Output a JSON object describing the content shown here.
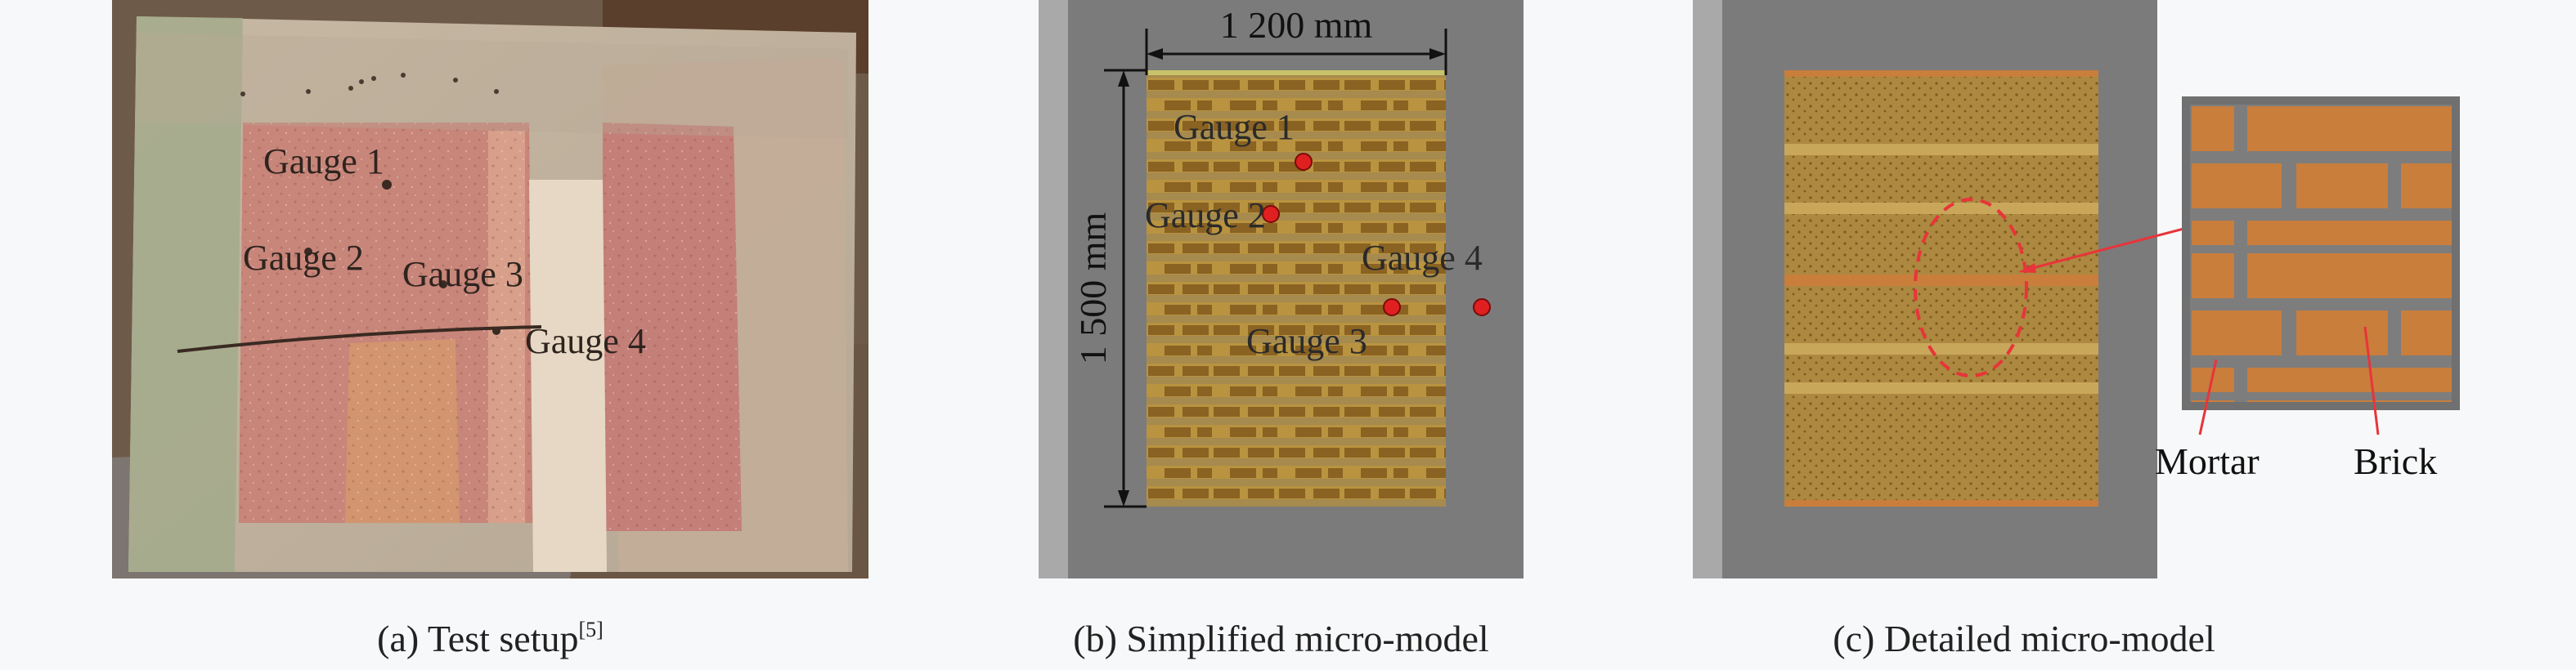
{
  "panel_a": {
    "gauges": [
      "Gauge 1",
      "Gauge 2",
      "Gauge 3",
      "Gauge 4"
    ],
    "caption": "(a) Test setup",
    "citation": "[5]"
  },
  "panel_b": {
    "width_label": "1 200 mm",
    "height_label": "1 500 mm",
    "gauges": [
      "Gauge 1",
      "Gauge 2",
      "Gauge 4",
      "Gauge 3"
    ],
    "caption": "(b) Simplified micro-model"
  },
  "panel_c": {
    "mortar_label": "Mortar",
    "brick_label": "Brick",
    "caption": "(c) Detailed micro-model"
  },
  "colors": {
    "gauge_marker": "#e02020",
    "background_gray": "#7b7b7b",
    "brick": "#c97e3c",
    "mortar": "#8c8c6a",
    "callout": "#e8343a"
  }
}
